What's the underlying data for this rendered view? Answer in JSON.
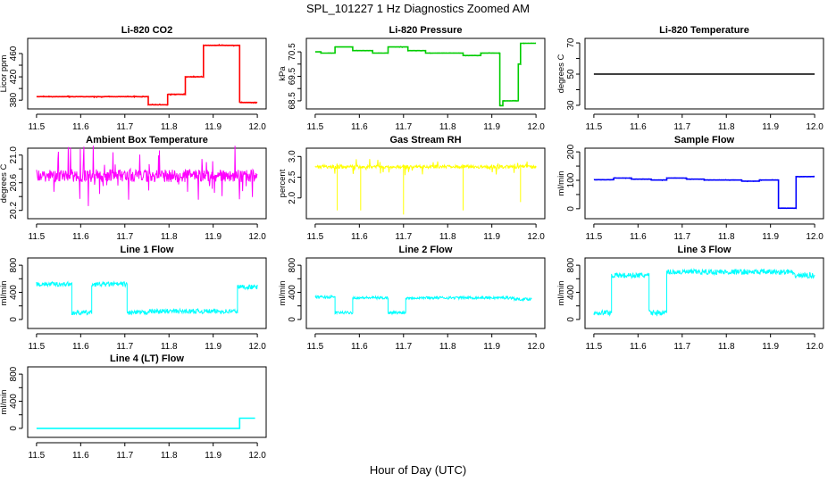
{
  "title": "SPL_101227  1 Hz Diagnostics Zoomed AM",
  "xlabel": "Hour of Day (UTC)",
  "chart_data": [
    {
      "type": "line",
      "title": "Li-820 CO2",
      "ylabel": "Licor ppm",
      "color": "#ff0000",
      "xlim": [
        11.48,
        12.02
      ],
      "ylim": [
        365,
        486
      ],
      "xticks": [
        11.5,
        11.6,
        11.7,
        11.8,
        11.9,
        12.0
      ],
      "yticks": [
        380,
        400,
        420,
        440,
        460
      ],
      "ytick_labels": [
        "380",
        "",
        "420",
        "",
        "460"
      ],
      "steps": [
        [
          11.5,
          386
        ],
        [
          11.753,
          372
        ],
        [
          11.797,
          390
        ],
        [
          11.837,
          420
        ],
        [
          11.878,
          474
        ],
        [
          11.96,
          376
        ],
        [
          12.0,
          376
        ]
      ],
      "noise": 1
    },
    {
      "type": "line",
      "title": "Li-820 Pressure",
      "ylabel": "kPa",
      "color": "#00cc00",
      "xlim": [
        11.48,
        12.02
      ],
      "ylim": [
        68.17,
        71.05
      ],
      "xticks": [
        11.5,
        11.6,
        11.7,
        11.8,
        11.9,
        12.0
      ],
      "yticks": [
        68.5,
        69.0,
        69.5,
        70.0,
        70.5
      ],
      "ytick_labels": [
        "68.5",
        "",
        "69.5",
        "",
        "70.5"
      ],
      "steps": [
        [
          11.5,
          70.5
        ],
        [
          11.513,
          70.45
        ],
        [
          11.545,
          70.7
        ],
        [
          11.585,
          70.55
        ],
        [
          11.63,
          70.45
        ],
        [
          11.665,
          70.7
        ],
        [
          11.71,
          70.55
        ],
        [
          11.75,
          70.45
        ],
        [
          11.835,
          70.35
        ],
        [
          11.875,
          70.45
        ],
        [
          11.918,
          68.3
        ],
        [
          11.925,
          68.5
        ],
        [
          11.96,
          70.0
        ],
        [
          11.965,
          70.85
        ],
        [
          12.0,
          70.85
        ]
      ],
      "noise": 0.01
    },
    {
      "type": "line",
      "title": "Li-820 Temperature",
      "ylabel": "degrees C",
      "color": "#000000",
      "xlim": [
        11.48,
        12.02
      ],
      "ylim": [
        27.7,
        72.9
      ],
      "xticks": [
        11.5,
        11.6,
        11.7,
        11.8,
        11.9,
        12.0
      ],
      "yticks": [
        30,
        40,
        50,
        60,
        70
      ],
      "ytick_labels": [
        "30",
        "",
        "50",
        "",
        "70"
      ],
      "steps": [
        [
          11.5,
          50
        ],
        [
          12.0,
          50
        ]
      ],
      "noise": 0
    },
    {
      "type": "line",
      "title": "Ambient Box Temperature",
      "ylabel": "degrees C",
      "color": "#ff00ff",
      "xlim": [
        11.48,
        12.02
      ],
      "ylim": [
        20.08,
        21.1
      ],
      "xticks": [
        11.5,
        11.6,
        11.7,
        11.8,
        11.9,
        12.0
      ],
      "yticks": [
        20.2,
        20.4,
        20.6,
        20.8,
        21.0
      ],
      "ytick_labels": [
        "20.2",
        "",
        "20.6",
        "",
        "21.0"
      ],
      "steps": [
        [
          11.5,
          20.7
        ],
        [
          12.0,
          20.7
        ]
      ],
      "noise": 0.45
    },
    {
      "type": "line",
      "title": "Gas Stream RH",
      "ylabel": "percent",
      "color": "#ffff00",
      "xlim": [
        11.48,
        12.02
      ],
      "ylim": [
        1.5,
        3.2
      ],
      "xticks": [
        11.5,
        11.6,
        11.7,
        11.8,
        11.9,
        12.0
      ],
      "yticks": [
        2.0,
        2.5,
        3.0
      ],
      "ytick_labels": [
        "2.0",
        "2.5",
        "3.0"
      ],
      "steps": [
        [
          11.5,
          2.75
        ],
        [
          12.0,
          2.75
        ]
      ],
      "noise": 0.2,
      "spikes": [
        [
          11.55,
          1.7
        ],
        [
          11.603,
          1.7
        ],
        [
          11.7,
          1.6
        ],
        [
          11.835,
          1.7
        ],
        [
          11.965,
          1.9
        ]
      ]
    },
    {
      "type": "line",
      "title": "Sample Flow",
      "ylabel": "ml/min",
      "color": "#0000ff",
      "xlim": [
        11.48,
        12.02
      ],
      "ylim": [
        -35,
        213
      ],
      "xticks": [
        11.5,
        11.6,
        11.7,
        11.8,
        11.9,
        12.0
      ],
      "yticks": [
        0,
        50,
        100,
        150,
        200
      ],
      "ytick_labels": [
        "0",
        "",
        "100",
        "",
        "200"
      ],
      "steps": [
        [
          11.5,
          102
        ],
        [
          11.545,
          108
        ],
        [
          11.585,
          104
        ],
        [
          11.63,
          101
        ],
        [
          11.665,
          108
        ],
        [
          11.71,
          104
        ],
        [
          11.75,
          101
        ],
        [
          11.835,
          97
        ],
        [
          11.875,
          101
        ],
        [
          11.918,
          2
        ],
        [
          11.958,
          113
        ],
        [
          12.0,
          113
        ]
      ],
      "noise": 1
    },
    {
      "type": "line",
      "title": "Line 1 Flow",
      "ylabel": "ml/min",
      "color": "#00ffff",
      "xlim": [
        11.48,
        12.02
      ],
      "ylim": [
        -133,
        907
      ],
      "xticks": [
        11.5,
        11.6,
        11.7,
        11.8,
        11.9,
        12.0
      ],
      "yticks": [
        0,
        200,
        400,
        600,
        800
      ],
      "ytick_labels": [
        "0",
        "",
        "400",
        "",
        "800"
      ],
      "steps": [
        [
          11.5,
          520
        ],
        [
          11.58,
          100
        ],
        [
          11.625,
          520
        ],
        [
          11.705,
          100
        ],
        [
          11.75,
          120
        ],
        [
          11.955,
          480
        ],
        [
          12.0,
          480
        ]
      ],
      "noise": 35
    },
    {
      "type": "line",
      "title": "Line 2 Flow",
      "ylabel": "ml/min",
      "color": "#00ffff",
      "xlim": [
        11.48,
        12.02
      ],
      "ylim": [
        -133,
        907
      ],
      "xticks": [
        11.5,
        11.6,
        11.7,
        11.8,
        11.9,
        12.0
      ],
      "yticks": [
        0,
        200,
        400,
        600,
        800
      ],
      "ytick_labels": [
        "0",
        "",
        "400",
        "",
        "800"
      ],
      "steps": [
        [
          11.5,
          330
        ],
        [
          11.545,
          100
        ],
        [
          11.585,
          320
        ],
        [
          11.665,
          100
        ],
        [
          11.705,
          320
        ],
        [
          11.95,
          300
        ],
        [
          11.99,
          300
        ]
      ],
      "noise": 20
    },
    {
      "type": "line",
      "title": "Line 3 Flow",
      "ylabel": "ml/min",
      "color": "#00ffff",
      "xlim": [
        11.48,
        12.02
      ],
      "ylim": [
        -133,
        907
      ],
      "xticks": [
        11.5,
        11.6,
        11.7,
        11.8,
        11.9,
        12.0
      ],
      "yticks": [
        0,
        200,
        400,
        600,
        800
      ],
      "ytick_labels": [
        "0",
        "",
        "400",
        "",
        "800"
      ],
      "steps": [
        [
          11.5,
          100
        ],
        [
          11.54,
          650
        ],
        [
          11.625,
          100
        ],
        [
          11.665,
          700
        ],
        [
          11.95,
          650
        ],
        [
          12.0,
          650
        ]
      ],
      "noise": 40
    },
    {
      "type": "line",
      "title": "Line 4 (LT) Flow",
      "ylabel": "ml/min",
      "color": "#00ffff",
      "xlim": [
        11.48,
        12.02
      ],
      "ylim": [
        -133,
        907
      ],
      "xticks": [
        11.5,
        11.6,
        11.7,
        11.8,
        11.9,
        12.0
      ],
      "yticks": [
        0,
        200,
        400,
        600,
        800
      ],
      "ytick_labels": [
        "0",
        "",
        "400",
        "",
        "800"
      ],
      "steps": [
        [
          11.5,
          0
        ],
        [
          11.96,
          150
        ],
        [
          11.995,
          150
        ]
      ],
      "noise": 0
    }
  ]
}
